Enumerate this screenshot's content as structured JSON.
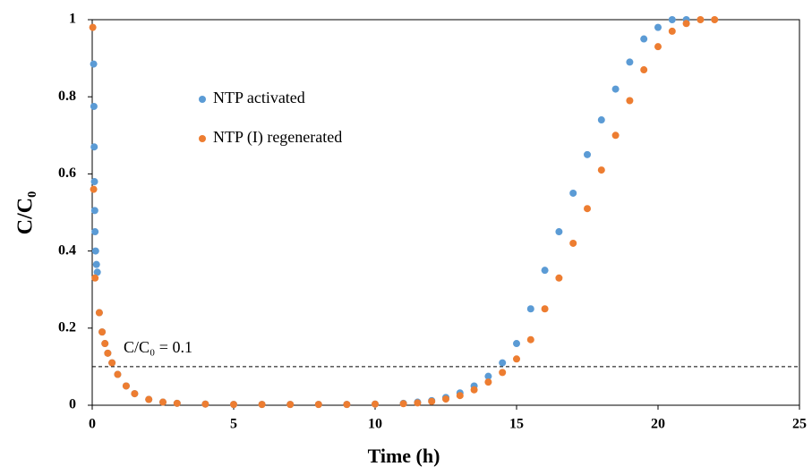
{
  "chart_data": {
    "type": "scatter",
    "x_label": "Time (h)",
    "y_label": "C/C₀",
    "xlim": [
      0,
      25
    ],
    "ylim": [
      0,
      1
    ],
    "xticks": [
      0,
      5,
      10,
      15,
      20,
      25
    ],
    "yticks": [
      0,
      0.2,
      0.4,
      0.6,
      0.8,
      1
    ],
    "grid": false,
    "legend": "upper left",
    "threshold": 0.1,
    "threshold_label": "C/C₀ = 0.1",
    "series": [
      {
        "name": "NTP activated",
        "color": "#5b9bd5",
        "x": [
          0.05,
          0.06,
          0.07,
          0.08,
          0.09,
          0.1,
          0.12,
          0.15,
          0.18,
          0.25,
          0.35,
          0.45,
          0.55,
          0.7,
          0.9,
          1.2,
          1.5,
          2,
          2.5,
          3,
          4,
          5,
          6,
          7,
          8,
          9,
          10,
          11,
          11.5,
          12,
          12.5,
          13,
          13.5,
          14,
          14.5,
          15,
          15.5,
          16,
          16.5,
          17,
          17.5,
          18,
          18.5,
          19,
          19.5,
          20,
          20.5,
          21
        ],
        "values": [
          0.885,
          0.775,
          0.67,
          0.58,
          0.505,
          0.45,
          0.4,
          0.365,
          0.345,
          0.24,
          0.19,
          0.16,
          0.135,
          0.11,
          0.08,
          0.05,
          0.03,
          0.015,
          0.008,
          0.005,
          0.003,
          0.002,
          0.002,
          0.002,
          0.002,
          0.002,
          0.003,
          0.005,
          0.008,
          0.012,
          0.02,
          0.032,
          0.05,
          0.075,
          0.11,
          0.16,
          0.25,
          0.35,
          0.45,
          0.55,
          0.65,
          0.74,
          0.82,
          0.89,
          0.95,
          0.98,
          1.0,
          1.0
        ]
      },
      {
        "name": "NTP (I) regenerated",
        "color": "#ed7d31",
        "x": [
          0.02,
          0.05,
          0.1,
          0.25,
          0.35,
          0.45,
          0.55,
          0.7,
          0.9,
          1.2,
          1.5,
          2,
          2.5,
          3,
          4,
          5,
          6,
          7,
          8,
          9,
          10,
          11,
          11.5,
          12,
          12.5,
          13,
          13.5,
          14,
          14.5,
          15,
          15.5,
          16,
          16.5,
          17,
          17.5,
          18,
          18.5,
          19,
          19.5,
          20,
          20.5,
          21,
          21.5,
          22
        ],
        "values": [
          0.98,
          0.56,
          0.33,
          0.24,
          0.19,
          0.16,
          0.135,
          0.11,
          0.08,
          0.05,
          0.03,
          0.015,
          0.008,
          0.005,
          0.003,
          0.002,
          0.002,
          0.002,
          0.002,
          0.002,
          0.003,
          0.004,
          0.006,
          0.01,
          0.016,
          0.025,
          0.04,
          0.06,
          0.085,
          0.12,
          0.17,
          0.25,
          0.33,
          0.42,
          0.51,
          0.61,
          0.7,
          0.79,
          0.87,
          0.93,
          0.97,
          0.99,
          1.0,
          1.0
        ]
      }
    ]
  }
}
